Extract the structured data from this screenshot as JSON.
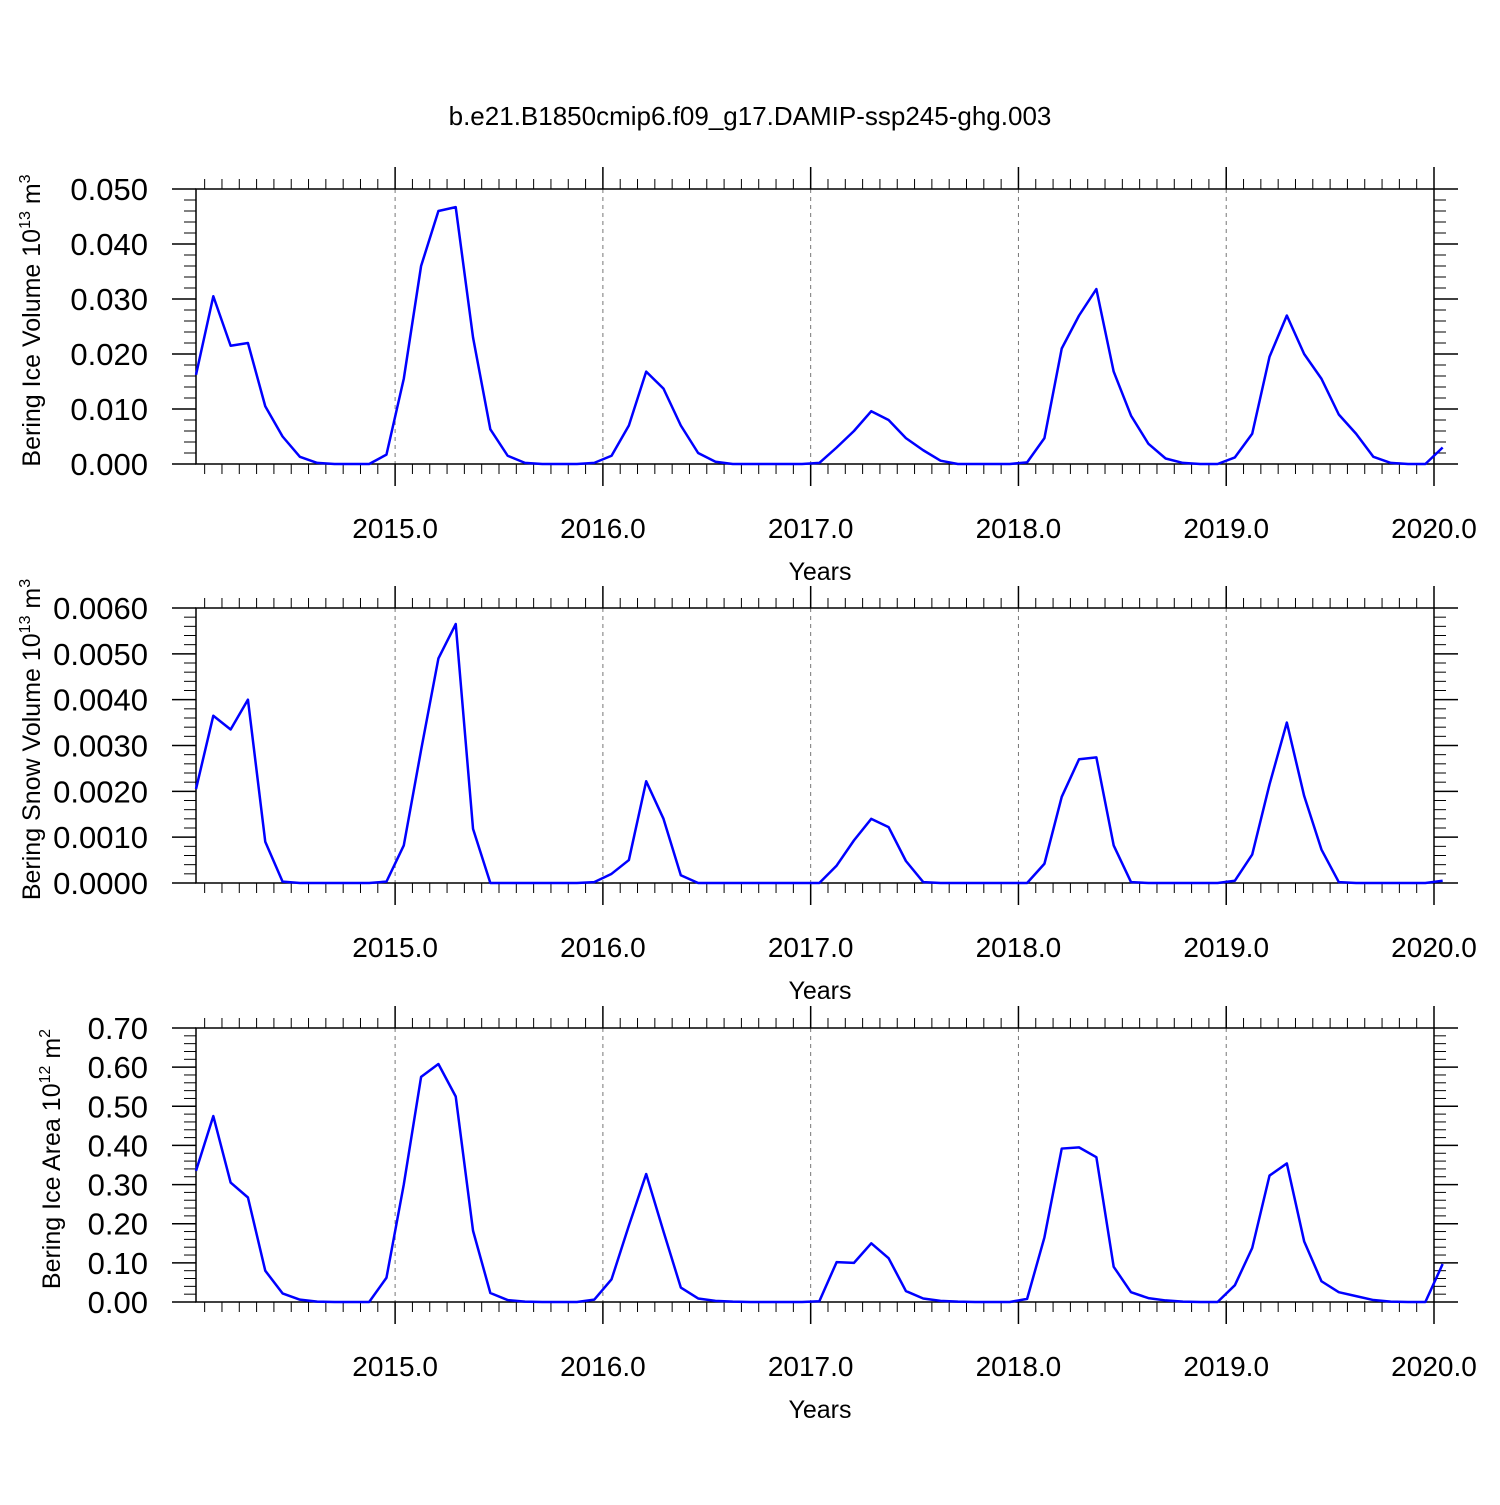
{
  "title": "b.e21.B1850cmip6.f09_g17.DAMIP-ssp245-ghg.003",
  "colors": {
    "line": "#0000ff",
    "axis": "#000000",
    "grid": "#777777",
    "background": "#ffffff"
  },
  "chart_data": [
    {
      "type": "line",
      "title": "b.e21.B1850cmip6.f09_g17.DAMIP-ssp245-ghg.003",
      "xlabel": "Years",
      "ylabel": "Bering Ice Volume 10^13 m^3",
      "ylabel_parts": {
        "main": "Bering Ice Volume 10",
        "exp": "13",
        "unit": " m",
        "unit_exp": "3"
      },
      "xlim": [
        2014.0417,
        2020.0
      ],
      "ylim": [
        0,
        0.05
      ],
      "x_start": 2014.0417,
      "x_step_months": 1,
      "xticks": [
        "2015.0",
        "2016.0",
        "2017.0",
        "2018.0",
        "2019.0",
        "2020.0"
      ],
      "yticks": [
        "0.000",
        "0.010",
        "0.020",
        "0.030",
        "0.040",
        "0.050"
      ],
      "grid": "vertical dashed at each year",
      "values": [
        0.0162,
        0.0305,
        0.0215,
        0.022,
        0.0105,
        0.005,
        0.0013,
        0.0002,
        0.0,
        0.0,
        0.0,
        0.0017,
        0.0155,
        0.036,
        0.046,
        0.0467,
        0.023,
        0.0063,
        0.0015,
        0.0002,
        0.0,
        0.0,
        0.0,
        0.0002,
        0.0015,
        0.007,
        0.0168,
        0.0137,
        0.007,
        0.002,
        0.0004,
        0.0,
        0.0,
        0.0,
        0.0,
        0.0,
        0.0002,
        0.003,
        0.006,
        0.0096,
        0.008,
        0.0047,
        0.0025,
        0.0006,
        0.0,
        0.0,
        0.0,
        0.0,
        0.0003,
        0.0047,
        0.021,
        0.027,
        0.0318,
        0.0168,
        0.0088,
        0.0037,
        0.001,
        0.0002,
        0.0,
        0.0,
        0.0012,
        0.0055,
        0.0195,
        0.027,
        0.02,
        0.0155,
        0.009,
        0.0055,
        0.0013,
        0.0002,
        0.0,
        0.0,
        0.003
      ]
    },
    {
      "type": "line",
      "xlabel": "Years",
      "ylabel": "Bering Snow Volume 10^13 m^3",
      "ylabel_parts": {
        "main": "Bering Snow Volume 10",
        "exp": "13",
        "unit": " m",
        "unit_exp": "3"
      },
      "xlim": [
        2014.0417,
        2020.0
      ],
      "ylim": [
        0,
        0.006
      ],
      "x_start": 2014.0417,
      "x_step_months": 1,
      "xticks": [
        "2015.0",
        "2016.0",
        "2017.0",
        "2018.0",
        "2019.0",
        "2020.0"
      ],
      "yticks": [
        "0.0000",
        "0.0010",
        "0.0020",
        "0.0030",
        "0.0040",
        "0.0050",
        "0.0060"
      ],
      "grid": "vertical dashed at each year",
      "values": [
        0.00205,
        0.00365,
        0.00335,
        0.004,
        0.0009,
        3e-05,
        0.0,
        0.0,
        0.0,
        0.0,
        0.0,
        3e-05,
        0.00082,
        0.0029,
        0.0049,
        0.00565,
        0.00118,
        0.0,
        0.0,
        0.0,
        0.0,
        0.0,
        0.0,
        2e-05,
        0.0002,
        0.0005,
        0.00222,
        0.0014,
        0.00017,
        0.0,
        0.0,
        0.0,
        0.0,
        0.0,
        0.0,
        0.0,
        0.0,
        0.00038,
        0.00093,
        0.0014,
        0.00122,
        0.00048,
        2e-05,
        0.0,
        0.0,
        0.0,
        0.0,
        0.0,
        0.0,
        0.00042,
        0.00188,
        0.0027,
        0.00274,
        0.00082,
        2e-05,
        0.0,
        0.0,
        0.0,
        0.0,
        0.0,
        5e-05,
        0.00062,
        0.00215,
        0.0035,
        0.0019,
        0.00073,
        2e-05,
        0.0,
        0.0,
        0.0,
        0.0,
        0.0,
        5e-05
      ]
    },
    {
      "type": "line",
      "xlabel": "Years",
      "ylabel": "Bering Ice Area 10^12 m^2",
      "ylabel_parts": {
        "main": "Bering Ice Area 10",
        "exp": "12",
        "unit": " m",
        "unit_exp": "2"
      },
      "xlim": [
        2014.0417,
        2020.0
      ],
      "ylim": [
        0,
        0.7
      ],
      "x_start": 2014.0417,
      "x_step_months": 1,
      "xticks": [
        "2015.0",
        "2016.0",
        "2017.0",
        "2018.0",
        "2019.0",
        "2020.0"
      ],
      "yticks": [
        "0.00",
        "0.10",
        "0.20",
        "0.30",
        "0.40",
        "0.50",
        "0.60",
        "0.70"
      ],
      "grid": "vertical dashed at each year",
      "values": [
        0.335,
        0.475,
        0.305,
        0.267,
        0.08,
        0.022,
        0.006,
        0.001,
        0.0,
        0.0,
        0.0,
        0.062,
        0.3,
        0.575,
        0.608,
        0.525,
        0.182,
        0.023,
        0.005,
        0.001,
        0.0,
        0.0,
        0.0,
        0.006,
        0.058,
        0.195,
        0.327,
        0.18,
        0.037,
        0.009,
        0.003,
        0.001,
        0.0,
        0.0,
        0.0,
        0.0,
        0.002,
        0.102,
        0.1,
        0.15,
        0.112,
        0.028,
        0.009,
        0.003,
        0.001,
        0.0,
        0.0,
        0.0,
        0.008,
        0.165,
        0.392,
        0.395,
        0.37,
        0.09,
        0.025,
        0.01,
        0.004,
        0.001,
        0.0,
        0.0,
        0.043,
        0.138,
        0.323,
        0.354,
        0.155,
        0.053,
        0.025,
        0.015,
        0.005,
        0.001,
        0.0,
        0.0,
        0.097
      ]
    }
  ]
}
